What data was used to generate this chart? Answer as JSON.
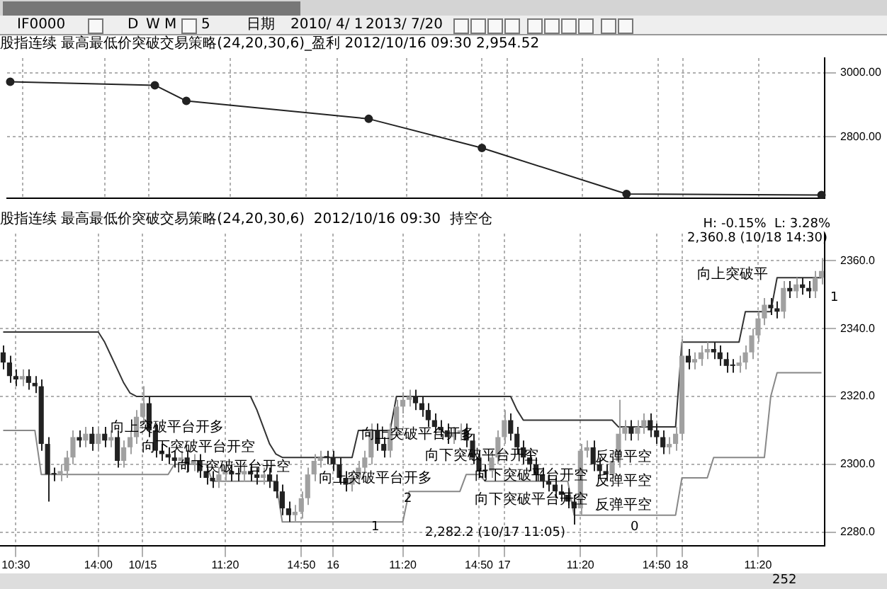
{
  "chart_data": [
    {
      "type": "line",
      "title": "股指连续 最高最低价突破交易策略(24,20,30,6)_盈利 2012/10/16 09:30 2,954.52",
      "color": "#222222",
      "marker": "circle",
      "grid": true,
      "tick_labels": "y",
      "ylim": [
        2607,
        3046
      ],
      "yticks": [
        {
          "value": 2800,
          "label": "2800.00"
        },
        {
          "value": 3000,
          "label": "3000.00"
        }
      ],
      "annotations": [
        "IF0000",
        "D",
        "W",
        "M",
        "5",
        "日期",
        "2010/ 4/ 1",
        "2013/ 7/20"
      ],
      "categories": [
        null,
        null,
        null,
        null,
        null,
        null,
        null,
        null,
        null,
        null,
        null,
        null,
        null,
        null,
        null,
        null,
        null,
        null,
        null,
        null,
        null,
        null,
        null,
        null,
        null,
        null,
        null,
        null,
        null,
        null,
        null,
        null,
        null,
        null,
        null,
        null,
        null,
        null,
        null,
        null,
        null,
        null,
        null,
        null,
        null,
        null,
        null,
        null,
        null,
        null,
        null,
        null,
        null,
        null,
        null,
        null,
        null,
        null,
        null,
        null,
        null,
        null,
        null,
        null,
        null,
        null,
        null,
        null,
        null,
        null,
        null,
        null,
        null,
        null,
        null,
        null,
        null,
        null,
        null,
        null,
        null,
        null,
        null,
        null,
        null,
        null,
        null,
        null,
        null,
        null,
        null,
        null,
        null,
        null,
        null,
        null,
        null,
        null,
        null,
        null,
        null,
        null,
        null,
        null,
        null,
        null,
        null,
        null,
        null,
        null,
        null,
        null,
        null,
        null,
        null,
        null,
        null,
        null,
        null,
        null,
        null,
        null,
        null,
        null,
        null,
        null,
        null,
        null,
        null,
        null
      ],
      "values": [
        2972,
        null,
        null,
        null,
        null,
        null,
        null,
        null,
        null,
        null,
        null,
        null,
        null,
        null,
        null,
        null,
        null,
        null,
        null,
        null,
        null,
        null,
        null,
        2961,
        null,
        null,
        null,
        null,
        2912,
        null,
        null,
        null,
        null,
        null,
        null,
        null,
        null,
        null,
        null,
        null,
        null,
        null,
        null,
        null,
        null,
        null,
        null,
        null,
        null,
        null,
        null,
        null,
        null,
        null,
        null,
        null,
        null,
        2856,
        null,
        null,
        null,
        null,
        null,
        null,
        null,
        null,
        null,
        null,
        null,
        null,
        null,
        null,
        null,
        null,
        null,
        2765,
        null,
        null,
        null,
        null,
        null,
        null,
        null,
        null,
        null,
        null,
        null,
        null,
        null,
        null,
        null,
        null,
        null,
        null,
        null,
        null,
        null,
        null,
        2621,
        null,
        null,
        null,
        null,
        null,
        null,
        null,
        null,
        null,
        null,
        null,
        null,
        null,
        null,
        null,
        null,
        null,
        null,
        null,
        null,
        null,
        null,
        null,
        null,
        null,
        null,
        null,
        null,
        null,
        null,
        2618
      ]
    },
    {
      "type": "candlestick",
      "title": "股指连续 最高最低价突破交易策略(24,20,30,6)  2012/10/16 09:30  持空仓",
      "colors": [
        "#222222",
        "#222222",
        "#222222",
        "#a0a0a0",
        "#222222",
        "#222222",
        "#222222",
        "#222222",
        "#222222",
        "#a0a0a0",
        "#a0a0a0",
        "#a0a0a0",
        "#222222",
        "#a0a0a0",
        "#222222",
        "#a0a0a0",
        "#222222",
        "#a0a0a0",
        "#222222",
        "#a0a0a0",
        "#a0a0a0",
        "#a0a0a0",
        "#a0a0a0",
        "#222222",
        "#222222",
        "#222222",
        "#222222",
        "#222222",
        "#a0a0a0",
        "#222222",
        "#a0a0a0",
        "#222222",
        "#222222",
        "#222222",
        "#a0a0a0",
        "#a0a0a0",
        "#222222",
        "#222222",
        "#a0a0a0",
        "#222222",
        "#222222",
        "#a0a0a0",
        "#222222",
        "#222222",
        "#222222",
        "#222222",
        "#a0a0a0",
        "#a0a0a0",
        "#a0a0a0",
        "#a0a0a0",
        "#a0a0a0",
        "#222222",
        "#222222",
        "#222222",
        "#222222",
        "#a0a0a0",
        "#a0a0a0",
        "#a0a0a0",
        "#a0a0a0",
        "#222222",
        "#222222",
        "#a0a0a0",
        "#a0a0a0",
        "#a0a0a0",
        "#a0a0a0",
        "#222222",
        "#222222",
        "#222222",
        "#222222",
        "#222222",
        "#222222",
        "#a0a0a0",
        "#a0a0a0",
        "#222222",
        "#222222",
        "#222222",
        "#222222",
        "#a0a0a0",
        "#a0a0a0",
        "#a0a0a0",
        "#222222",
        "#222222",
        "#222222",
        "#222222",
        "#222222",
        "#222222",
        "#222222",
        "#222222",
        "#222222",
        "#222222",
        "#222222",
        "#a0a0a0",
        "#a0a0a0",
        "#222222",
        "#222222",
        "#222222",
        "#a0a0a0",
        "#a0a0a0",
        "#a0a0a0",
        "#222222",
        "#a0a0a0",
        "#a0a0a0",
        "#222222",
        "#222222",
        "#222222",
        "#a0a0a0",
        "#a0a0a0",
        "#a0a0a0",
        "#222222",
        "#a0a0a0",
        "#a0a0a0",
        "#a0a0a0",
        "#222222",
        "#222222",
        "#222222",
        "#222222",
        "#a0a0a0",
        "#a0a0a0",
        "#a0a0a0",
        "#a0a0a0",
        "#a0a0a0",
        "#222222",
        "#222222",
        "#a0a0a0",
        "#222222",
        "#a0a0a0",
        "#222222",
        "#222222",
        "#a0a0a0",
        "#a0a0a0"
      ],
      "grid": true,
      "ylim": [
        2276,
        2368
      ],
      "yticks": [
        {
          "value": 2280,
          "label": "2280.0"
        },
        {
          "value": 2300,
          "label": "2300.0"
        },
        {
          "value": 2320,
          "label": "2320.0"
        },
        {
          "value": 2340,
          "label": "2340.0"
        },
        {
          "value": 2360,
          "label": "2360.0"
        }
      ],
      "annotations": [
        "H: -0.15%  L: 3.28%",
        "2,360.8 (10/18 14:30)",
        "2,282.2 (10/17 11:05)",
        "向上突破平台开多",
        "向下突破平台开空",
        "向下突破平台开空",
        "向上突破平台开多",
        "向上突破平台开多",
        "向下突破平台开空",
        "向下突破平台开空",
        "向下突破平台开空",
        "反弹平空",
        "反弹平空",
        "反弹平空",
        "向上突破平",
        "1",
        "2",
        "0",
        "1",
        "252"
      ],
      "categories": [
        null,
        null,
        "10:30",
        null,
        null,
        null,
        null,
        null,
        null,
        null,
        null,
        null,
        null,
        null,
        null,
        "14:00",
        null,
        null,
        null,
        null,
        null,
        null,
        "10/15",
        null,
        null,
        null,
        null,
        null,
        null,
        null,
        null,
        null,
        null,
        null,
        null,
        "11:20",
        null,
        null,
        null,
        null,
        null,
        null,
        null,
        null,
        null,
        null,
        null,
        "14:50",
        null,
        null,
        null,
        null,
        "16",
        null,
        null,
        null,
        null,
        null,
        null,
        null,
        null,
        null,
        null,
        "11:20",
        null,
        null,
        null,
        null,
        null,
        null,
        null,
        null,
        null,
        null,
        null,
        "14:50",
        null,
        null,
        null,
        "17",
        null,
        null,
        null,
        null,
        null,
        null,
        null,
        null,
        null,
        null,
        null,
        "11:20",
        null,
        null,
        null,
        null,
        null,
        null,
        null,
        null,
        null,
        null,
        null,
        "14:50",
        null,
        null,
        null,
        "18",
        null,
        null,
        null,
        null,
        null,
        null,
        null,
        null,
        null,
        null,
        null,
        "11:20",
        null,
        null,
        null,
        null,
        null,
        null,
        null,
        null,
        null,
        null
      ],
      "ohlc": [
        [
          2333,
          2335,
          2328,
          2330
        ],
        [
          2330,
          2332,
          2324,
          2326
        ],
        [
          2326,
          2328,
          2323,
          2325
        ],
        [
          2325,
          2328,
          2323,
          2326
        ],
        [
          2326,
          2328,
          2322,
          2324
        ],
        [
          2324,
          2326,
          2321,
          2323
        ],
        [
          2323,
          2325,
          2304,
          2306
        ],
        [
          2306,
          2308,
          2289,
          2297
        ],
        [
          2297,
          2299,
          2295,
          2297
        ],
        [
          2297,
          2300,
          2295,
          2298
        ],
        [
          2298,
          2304,
          2296,
          2302
        ],
        [
          2302,
          2310,
          2300,
          2308
        ],
        [
          2308,
          2310,
          2305,
          2307
        ],
        [
          2307,
          2311,
          2305,
          2309
        ],
        [
          2309,
          2311,
          2304,
          2306
        ],
        [
          2306,
          2311,
          2304,
          2309
        ],
        [
          2309,
          2311,
          2305,
          2307
        ],
        [
          2307,
          2310,
          2305,
          2308
        ],
        [
          2308,
          2310,
          2299,
          2301
        ],
        [
          2301,
          2307,
          2299,
          2305
        ],
        [
          2305,
          2310,
          2303,
          2308
        ],
        [
          2308,
          2316,
          2306,
          2314
        ],
        [
          2314,
          2323,
          2312,
          2318
        ],
        [
          2318,
          2320,
          2308,
          2310
        ],
        [
          2310,
          2312,
          2302,
          2304
        ],
        [
          2304,
          2306,
          2301,
          2303
        ],
        [
          2303,
          2305,
          2300,
          2302
        ],
        [
          2302,
          2304,
          2299,
          2301
        ],
        [
          2301,
          2304,
          2299,
          2302
        ],
        [
          2302,
          2304,
          2298,
          2300
        ],
        [
          2300,
          2303,
          2298,
          2301
        ],
        [
          2301,
          2303,
          2296,
          2298
        ],
        [
          2298,
          2300,
          2294,
          2296
        ],
        [
          2296,
          2298,
          2293,
          2295
        ],
        [
          2295,
          2299,
          2293,
          2297
        ],
        [
          2297,
          2300,
          2295,
          2298
        ],
        [
          2298,
          2300,
          2295,
          2297
        ],
        [
          2297,
          2299,
          2295,
          2297
        ],
        [
          2297,
          2300,
          2295,
          2298
        ],
        [
          2298,
          2300,
          2295,
          2297
        ],
        [
          2297,
          2299,
          2294,
          2296
        ],
        [
          2296,
          2299,
          2294,
          2297
        ],
        [
          2297,
          2299,
          2293,
          2295
        ],
        [
          2295,
          2297,
          2290,
          2292
        ],
        [
          2292,
          2294,
          2285,
          2287
        ],
        [
          2287,
          2289,
          2283,
          2285
        ],
        [
          2285,
          2288,
          2283,
          2286
        ],
        [
          2286,
          2292,
          2284,
          2290
        ],
        [
          2290,
          2299,
          2288,
          2297
        ],
        [
          2297,
          2303,
          2295,
          2301
        ],
        [
          2301,
          2304,
          2299,
          2302
        ],
        [
          2302,
          2304,
          2300,
          2302
        ],
        [
          2302,
          2304,
          2298,
          2300
        ],
        [
          2300,
          2302,
          2294,
          2296
        ],
        [
          2296,
          2298,
          2292,
          2294
        ],
        [
          2294,
          2298,
          2292,
          2296
        ],
        [
          2296,
          2301,
          2294,
          2299
        ],
        [
          2299,
          2304,
          2297,
          2302
        ],
        [
          2302,
          2312,
          2300,
          2310
        ],
        [
          2310,
          2312,
          2304,
          2306
        ],
        [
          2306,
          2308,
          2302,
          2304
        ],
        [
          2304,
          2312,
          2302,
          2310
        ],
        [
          2310,
          2319,
          2308,
          2317
        ],
        [
          2317,
          2321,
          2315,
          2319
        ],
        [
          2319,
          2322,
          2317,
          2320
        ],
        [
          2320,
          2322,
          2316,
          2318
        ],
        [
          2318,
          2320,
          2314,
          2316
        ],
        [
          2316,
          2318,
          2311,
          2313
        ],
        [
          2313,
          2315,
          2309,
          2311
        ],
        [
          2311,
          2313,
          2308,
          2310
        ],
        [
          2310,
          2312,
          2306,
          2308
        ],
        [
          2308,
          2311,
          2306,
          2309
        ],
        [
          2309,
          2312,
          2307,
          2310
        ],
        [
          2310,
          2312,
          2305,
          2307
        ],
        [
          2307,
          2309,
          2300,
          2302
        ],
        [
          2302,
          2304,
          2296,
          2298
        ],
        [
          2298,
          2300,
          2296,
          2298
        ],
        [
          2298,
          2304,
          2296,
          2302
        ],
        [
          2302,
          2310,
          2300,
          2308
        ],
        [
          2308,
          2316,
          2306,
          2313
        ],
        [
          2313,
          2315,
          2307,
          2309
        ],
        [
          2309,
          2311,
          2303,
          2305
        ],
        [
          2305,
          2307,
          2300,
          2302
        ],
        [
          2302,
          2304,
          2298,
          2300
        ],
        [
          2300,
          2302,
          2295,
          2297
        ],
        [
          2297,
          2299,
          2293,
          2295
        ],
        [
          2295,
          2297,
          2292,
          2294
        ],
        [
          2294,
          2296,
          2290,
          2292
        ],
        [
          2292,
          2294,
          2289,
          2291
        ],
        [
          2291,
          2293,
          2287,
          2289
        ],
        [
          2289,
          2291,
          2282.2,
          2287
        ],
        [
          2287,
          2306,
          2285,
          2304
        ],
        [
          2304,
          2307,
          2302,
          2305
        ],
        [
          2305,
          2307,
          2298,
          2300
        ],
        [
          2300,
          2302,
          2296,
          2298
        ],
        [
          2298,
          2300,
          2295,
          2297
        ],
        [
          2297,
          2303,
          2295,
          2301
        ],
        [
          2301,
          2319,
          2299,
          2309
        ],
        [
          2309,
          2313,
          2307,
          2311
        ],
        [
          2311,
          2313,
          2307,
          2309
        ],
        [
          2309,
          2313,
          2307,
          2311
        ],
        [
          2311,
          2315,
          2309,
          2313
        ],
        [
          2313,
          2315,
          2308,
          2310
        ],
        [
          2310,
          2312,
          2306,
          2308
        ],
        [
          2308,
          2310,
          2303,
          2305
        ],
        [
          2305,
          2308,
          2303,
          2306
        ],
        [
          2306,
          2311,
          2304,
          2309
        ],
        [
          2309,
          2337,
          2307,
          2332
        ],
        [
          2332,
          2334,
          2328,
          2330
        ],
        [
          2330,
          2333,
          2328,
          2331
        ],
        [
          2331,
          2335,
          2329,
          2333
        ],
        [
          2333,
          2336,
          2331,
          2334
        ],
        [
          2334,
          2336,
          2331,
          2333
        ],
        [
          2333,
          2335,
          2329,
          2331
        ],
        [
          2331,
          2333,
          2327,
          2329
        ],
        [
          2329,
          2331,
          2327,
          2329
        ],
        [
          2329,
          2332,
          2327,
          2330
        ],
        [
          2330,
          2335,
          2328,
          2333
        ],
        [
          2333,
          2340,
          2331,
          2338
        ],
        [
          2338,
          2345,
          2336,
          2343
        ],
        [
          2343,
          2349,
          2341,
          2347
        ],
        [
          2347,
          2349,
          2344,
          2346
        ],
        [
          2346,
          2348,
          2343,
          2345
        ],
        [
          2345,
          2354,
          2343,
          2352
        ],
        [
          2352,
          2354,
          2349,
          2351
        ],
        [
          2351,
          2355,
          2349,
          2353
        ],
        [
          2353,
          2355,
          2350,
          2352
        ],
        [
          2352,
          2354,
          2349,
          2351
        ],
        [
          2351,
          2357,
          2349,
          2355
        ],
        [
          2355,
          2360.8,
          2353,
          2357
        ]
      ],
      "series": [
        {
          "type": "line",
          "color": "#333333",
          "values": [
            2339,
            2339,
            2339,
            2339,
            2339,
            2339,
            2339,
            2339,
            2339,
            2339,
            2339,
            2339,
            2339,
            2339,
            2339,
            2339,
            2336,
            2332,
            2328,
            2324,
            2321,
            2320,
            2320,
            2320,
            2320,
            2320,
            2320,
            2320,
            2320,
            2320,
            2320,
            2320,
            2320,
            2320,
            2320,
            2320,
            2320,
            2320,
            2320,
            2320,
            2316,
            2311,
            2306,
            2303,
            2302,
            2302,
            2302,
            2302,
            2302,
            2302,
            2302,
            2302,
            2302,
            2302,
            2302,
            2302,
            2310,
            2310,
            2310,
            2310,
            2310,
            2310,
            2320,
            2320,
            2320,
            2320,
            2320,
            2320,
            2320,
            2320,
            2320,
            2320,
            2320,
            2320,
            2320,
            2320,
            2320,
            2320,
            2320,
            2320,
            2320,
            2316,
            2313,
            2313,
            2313,
            2313,
            2313,
            2313,
            2313,
            2313,
            2313,
            2313,
            2313,
            2313,
            2313,
            2313,
            2313,
            2311,
            2311,
            2311,
            2311,
            2311,
            2311,
            2311,
            2311,
            2311,
            2311,
            2336,
            2336,
            2336,
            2336,
            2336,
            2336,
            2336,
            2336,
            2336,
            2336,
            2345,
            2345,
            2345,
            2345,
            2345,
            2355,
            2355,
            2355,
            2355,
            2355,
            2355,
            2355,
            2355
          ]
        },
        {
          "type": "line",
          "color": "#888888",
          "values": [
            2310,
            2310,
            2310,
            2310,
            2310,
            2310,
            2297,
            2297,
            2297,
            2297,
            2297,
            2297,
            2297,
            2297,
            2297,
            2297,
            2297,
            2297,
            2297,
            2297,
            2297,
            2297,
            2297,
            2297,
            2297,
            2297,
            2297,
            2300,
            2300,
            2300,
            2300,
            2300,
            2300,
            2295,
            2295,
            2295,
            2295,
            2295,
            2295,
            2295,
            2295,
            2295,
            2295,
            2295,
            2283,
            2283,
            2283,
            2283,
            2283,
            2283,
            2283,
            2283,
            2283,
            2283,
            2283,
            2283,
            2283,
            2283,
            2283,
            2283,
            2283,
            2283,
            2283,
            2283,
            2292,
            2292,
            2292,
            2292,
            2292,
            2292,
            2292,
            2292,
            2292,
            2297,
            2297,
            2297,
            2295,
            2295,
            2295,
            2295,
            2295,
            2295,
            2295,
            2295,
            2295,
            2295,
            2295,
            2295,
            2295,
            2295,
            2285,
            2285,
            2285,
            2285,
            2285,
            2285,
            2285,
            2285,
            2285,
            2285,
            2285,
            2285,
            2285,
            2285,
            2285,
            2285,
            2285,
            2296,
            2296,
            2296,
            2296,
            2296,
            2302,
            2302,
            2302,
            2302,
            2302,
            2302,
            2302,
            2302,
            2302,
            2320,
            2327,
            2327,
            2327,
            2327,
            2327,
            2327,
            2327,
            2327
          ]
        }
      ]
    }
  ]
}
